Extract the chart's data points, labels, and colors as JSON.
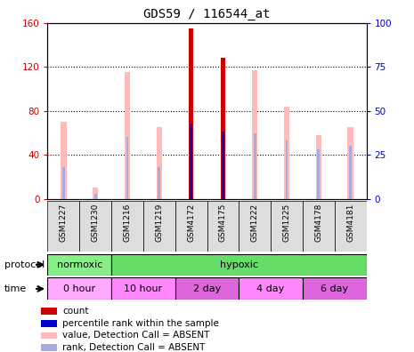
{
  "title": "GDS59 / 116544_at",
  "samples": [
    "GSM1227",
    "GSM1230",
    "GSM1216",
    "GSM1219",
    "GSM4172",
    "GSM4175",
    "GSM1222",
    "GSM1225",
    "GSM4178",
    "GSM4181"
  ],
  "value_absent": [
    70,
    10,
    115,
    65,
    0,
    0,
    117,
    84,
    58,
    65
  ],
  "rank_absent_pct": [
    18,
    3,
    35,
    18,
    0,
    0,
    37,
    33,
    28,
    30
  ],
  "count_red": [
    0,
    0,
    0,
    0,
    155,
    128,
    0,
    0,
    0,
    0
  ],
  "rank_blue_pct": [
    0,
    0,
    0,
    0,
    43,
    38,
    0,
    0,
    0,
    0
  ],
  "ylim_left": [
    0,
    160
  ],
  "ylim_right": [
    0,
    100
  ],
  "yticks_left": [
    0,
    40,
    80,
    120,
    160
  ],
  "yticks_right": [
    0,
    25,
    50,
    75,
    100
  ],
  "color_value_absent": "#ffbbbb",
  "color_rank_absent": "#aaaadd",
  "color_count": "#cc0000",
  "color_rank_blue": "#0000cc",
  "left_axis_color": "#cc0000",
  "right_axis_color": "#0000cc",
  "normoxic_color": "#88ee88",
  "hypoxic_color": "#66dd66",
  "time_colors": [
    "#ffaaff",
    "#ff88ff",
    "#dd66dd",
    "#ff88ff",
    "#dd66dd"
  ],
  "time_labels": [
    "0 hour",
    "10 hour",
    "2 day",
    "4 day",
    "6 day"
  ],
  "time_ranges": [
    [
      0,
      2
    ],
    [
      2,
      4
    ],
    [
      4,
      6
    ],
    [
      6,
      8
    ],
    [
      8,
      10
    ]
  ],
  "legend_items": [
    {
      "color": "#cc0000",
      "label": "count"
    },
    {
      "color": "#0000cc",
      "label": "percentile rank within the sample"
    },
    {
      "color": "#ffbbbb",
      "label": "value, Detection Call = ABSENT"
    },
    {
      "color": "#aaaadd",
      "label": "rank, Detection Call = ABSENT"
    }
  ]
}
